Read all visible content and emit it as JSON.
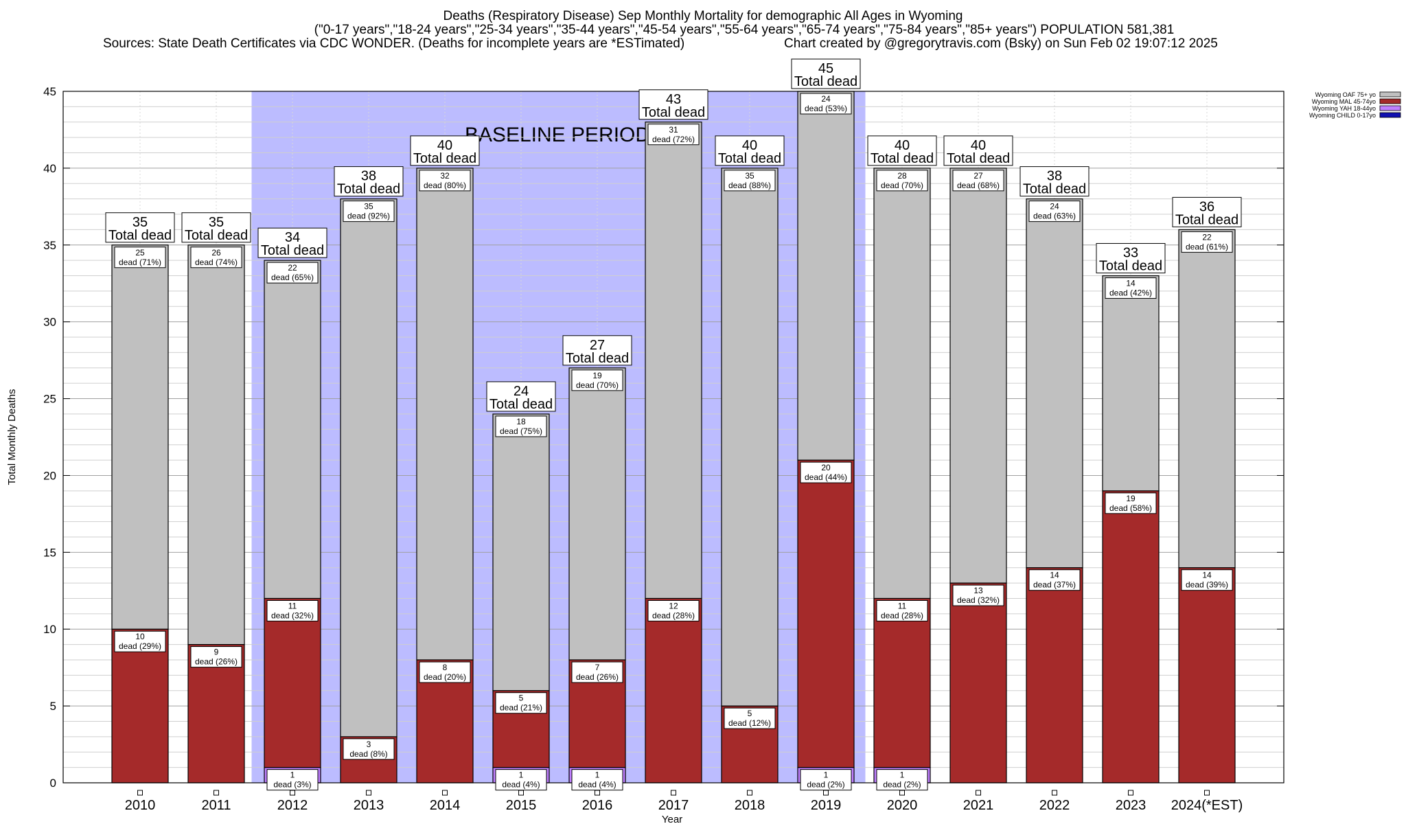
{
  "header": {
    "line1": "Deaths (Respiratory Disease) Sep Monthly Mortality for demographic All Ages in Wyoming",
    "line2": "(\"0-17 years\",\"18-24 years\",\"25-34 years\",\"35-44 years\",\"45-54 years\",\"55-64 years\",\"65-74 years\",\"75-84 years\",\"85+ years\") POPULATION 581,381",
    "line3": "Sources: State Death Certificates via CDC WONDER. (Deaths for incomplete years are *ESTimated)",
    "line4": "Chart created by @gregorytravis.com (Bsky) on Sun Feb 02 19:07:12 2025"
  },
  "chart_data": {
    "type": "bar",
    "stacked": true,
    "xlabel": "Year",
    "ylabel": "Total Monthly Deaths",
    "ylim": [
      0,
      45
    ],
    "yticks": [
      0,
      5,
      10,
      15,
      20,
      25,
      30,
      35,
      40,
      45
    ],
    "grid": true,
    "legend_position": "top-right",
    "baseline_label": "BASELINE PERIOD",
    "baseline_range": [
      "2012",
      "2019"
    ],
    "categories": [
      "2010",
      "2011",
      "2012",
      "2013",
      "2014",
      "2015",
      "2016",
      "2017",
      "2018",
      "2019",
      "2020",
      "2021",
      "2022",
      "2023",
      "2024(*EST)"
    ],
    "series": [
      {
        "name": "Wyoming CHILD 0-17yo",
        "color": "#1010b0",
        "values": [
          0,
          0,
          0,
          0,
          0,
          0,
          0,
          0,
          0,
          0,
          0,
          0,
          0,
          0,
          0
        ]
      },
      {
        "name": "Wyoming YAH 18-44yo",
        "color": "#c080ff",
        "values": [
          0,
          0,
          1,
          0,
          0,
          1,
          1,
          0,
          0,
          1,
          1,
          0,
          0,
          0,
          0
        ]
      },
      {
        "name": "Wyoming MAL 45-74yo",
        "color": "#a52a2a",
        "values": [
          10,
          9,
          11,
          3,
          8,
          5,
          7,
          12,
          5,
          20,
          11,
          13,
          14,
          19,
          14
        ]
      },
      {
        "name": "Wyoming OAF 75+ yo",
        "color": "#c0c0c0",
        "values": [
          25,
          26,
          22,
          35,
          32,
          18,
          19,
          31,
          35,
          24,
          28,
          27,
          24,
          14,
          22
        ]
      }
    ],
    "totals": [
      35,
      35,
      34,
      38,
      40,
      24,
      27,
      43,
      40,
      45,
      40,
      40,
      38,
      33,
      36
    ],
    "total_label": "Total dead",
    "segment_label_prefix": "dead",
    "segment_labels": {
      "yah": [
        "",
        "",
        "dead (3%)",
        "",
        "",
        "dead (4%)",
        "dead (4%)",
        "",
        "",
        "dead (2%)",
        "dead (2%)",
        "",
        "",
        "",
        ""
      ],
      "mal": [
        "dead (29%)",
        "dead (26%)",
        "dead (32%)",
        "dead (8%)",
        "dead (20%)",
        "dead (21%)",
        "dead (26%)",
        "dead (28%)",
        "dead (12%)",
        "dead (44%)",
        "dead (28%)",
        "dead (32%)",
        "dead (37%)",
        "dead (58%)",
        "dead (39%)"
      ],
      "oaf": [
        "dead (71%)",
        "dead (74%)",
        "dead (65%)",
        "dead (92%)",
        "dead (80%)",
        "dead (75%)",
        "dead (70%)",
        "dead (72%)",
        "dead (88%)",
        "dead (53%)",
        "dead (70%)",
        "dead (68%)",
        "dead (63%)",
        "dead (42%)",
        "dead (61%)"
      ]
    }
  }
}
